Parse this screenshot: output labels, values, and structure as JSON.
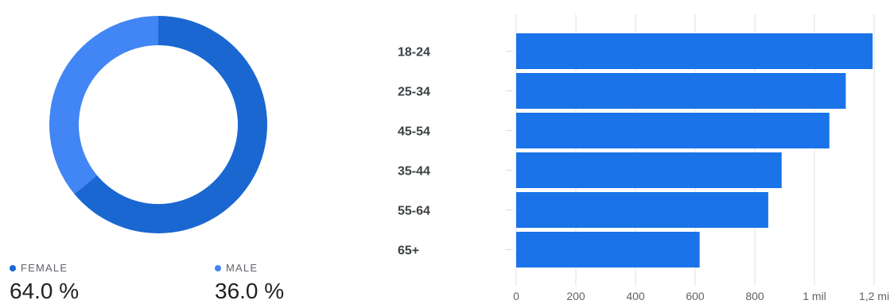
{
  "chart_data": [
    {
      "type": "pie",
      "style": "donut",
      "slices": [
        {
          "label": "FEMALE",
          "value": 64.0,
          "display": "64.0 %",
          "color": "#1a67d2"
        },
        {
          "label": "MALE",
          "value": 36.0,
          "display": "36.0 %",
          "color": "#4285f4"
        }
      ]
    },
    {
      "type": "bar",
      "orientation": "horizontal",
      "categories": [
        "18-24",
        "25-34",
        "45-54",
        "35-44",
        "55-64",
        "65+"
      ],
      "values": [
        1195,
        1105,
        1050,
        890,
        845,
        615
      ],
      "xlim": [
        0,
        1200
      ],
      "ticks": [
        {
          "value": 0,
          "label": "0"
        },
        {
          "value": 200,
          "label": "200"
        },
        {
          "value": 400,
          "label": "400"
        },
        {
          "value": 600,
          "label": "600"
        },
        {
          "value": 800,
          "label": "800"
        },
        {
          "value": 1000,
          "label": "1 mil"
        },
        {
          "value": 1200,
          "label": "1,2 mi"
        }
      ],
      "bar_color": "#1a73e8",
      "grid": true
    }
  ]
}
